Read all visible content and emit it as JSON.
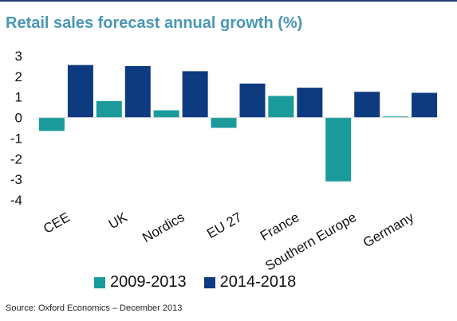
{
  "chart_data": {
    "type": "bar",
    "title": "Retail sales forecast annual growth (%)",
    "categories": [
      "CEE",
      "UK",
      "Nordics",
      "EU 27",
      "France",
      "Southern Europe",
      "Germany"
    ],
    "series": [
      {
        "name": "2009-2013",
        "color": "#1a9a9a",
        "values": [
          -0.65,
          0.8,
          0.35,
          -0.5,
          1.05,
          -3.1,
          0.05
        ]
      },
      {
        "name": "2014-2018",
        "color": "#0e3a80",
        "values": [
          2.55,
          2.5,
          2.25,
          1.65,
          1.45,
          1.25,
          1.2
        ]
      }
    ],
    "ylim": [
      -4,
      3
    ],
    "yticks": [
      "3",
      "2",
      "1",
      "0",
      "-1",
      "-2",
      "-3",
      "-4"
    ],
    "xlabel": "",
    "ylabel": "",
    "grid": false,
    "legend_position": "bottom"
  },
  "source": "Source:  Oxford Economics – December 2013"
}
